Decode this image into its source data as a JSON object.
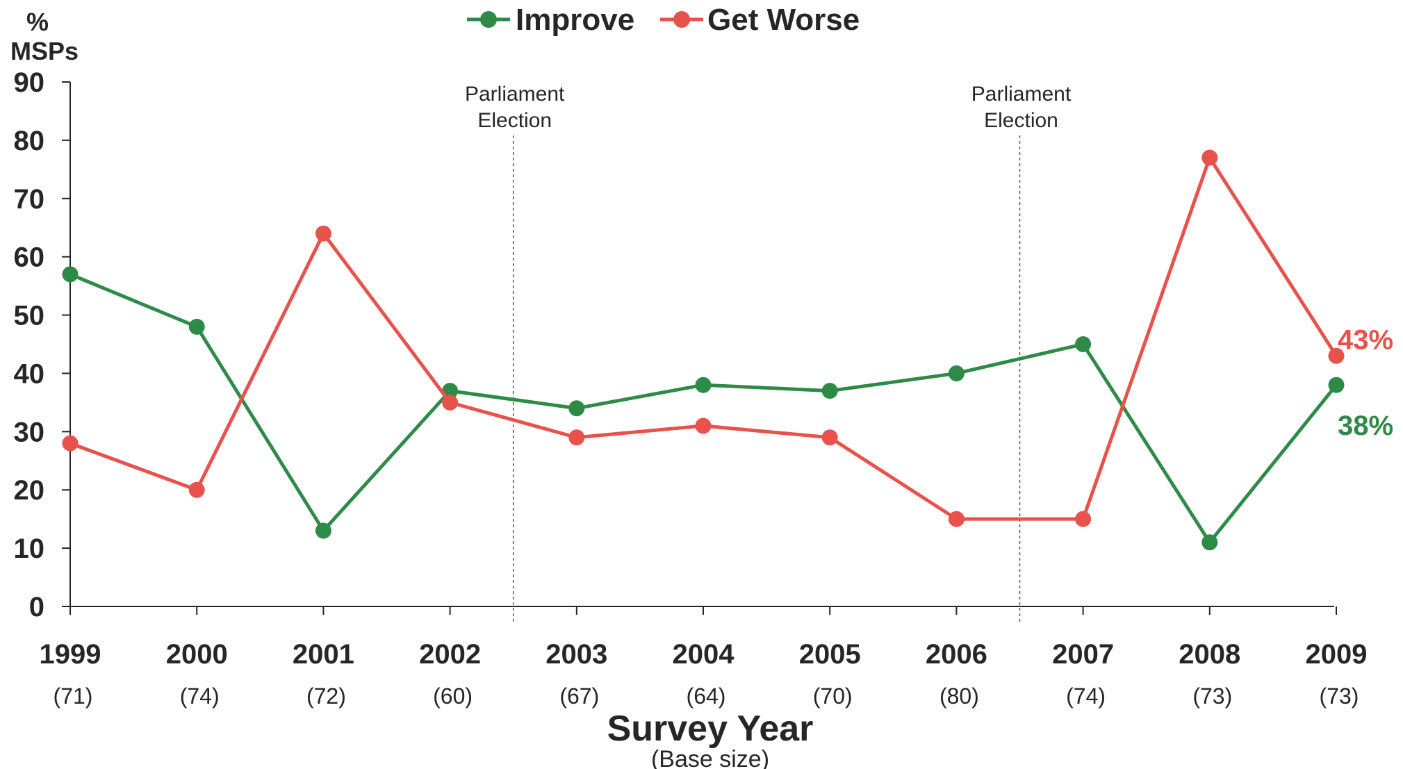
{
  "chart_data": {
    "type": "line",
    "ylabel": [
      "%",
      "MSPs"
    ],
    "xlabel": "Survey Year",
    "xlabel_sub": "(Base size)",
    "categories": [
      "1999",
      "2000",
      "2001",
      "2002",
      "2003",
      "2004",
      "2005",
      "2006",
      "2007",
      "2008",
      "2009"
    ],
    "base_sizes": [
      "(71)",
      "(74)",
      "(72)",
      "(60)",
      "(67)",
      "(64)",
      "(70)",
      "(80)",
      "(74)",
      "(73)",
      "(73)"
    ],
    "ylim": [
      0,
      90
    ],
    "yticks": [
      0,
      10,
      20,
      30,
      40,
      50,
      60,
      70,
      80,
      90
    ],
    "grid": false,
    "legend_position": "top-center",
    "series": [
      {
        "name": "Improve",
        "color": "#2e8b47",
        "values": [
          57,
          48,
          13,
          37,
          34,
          38,
          37,
          40,
          45,
          11,
          38
        ],
        "end_label": "38%"
      },
      {
        "name": "Get Worse",
        "color": "#e8524a",
        "values": [
          28,
          20,
          64,
          35,
          29,
          31,
          29,
          15,
          15,
          77,
          43
        ],
        "end_label": "43%"
      }
    ],
    "annotations": [
      {
        "text": [
          "Parliament",
          "Election"
        ],
        "x_between": [
          "2002",
          "2003"
        ]
      },
      {
        "text": [
          "Parliament",
          "Election"
        ],
        "x_between": [
          "2006",
          "2007"
        ]
      }
    ]
  }
}
